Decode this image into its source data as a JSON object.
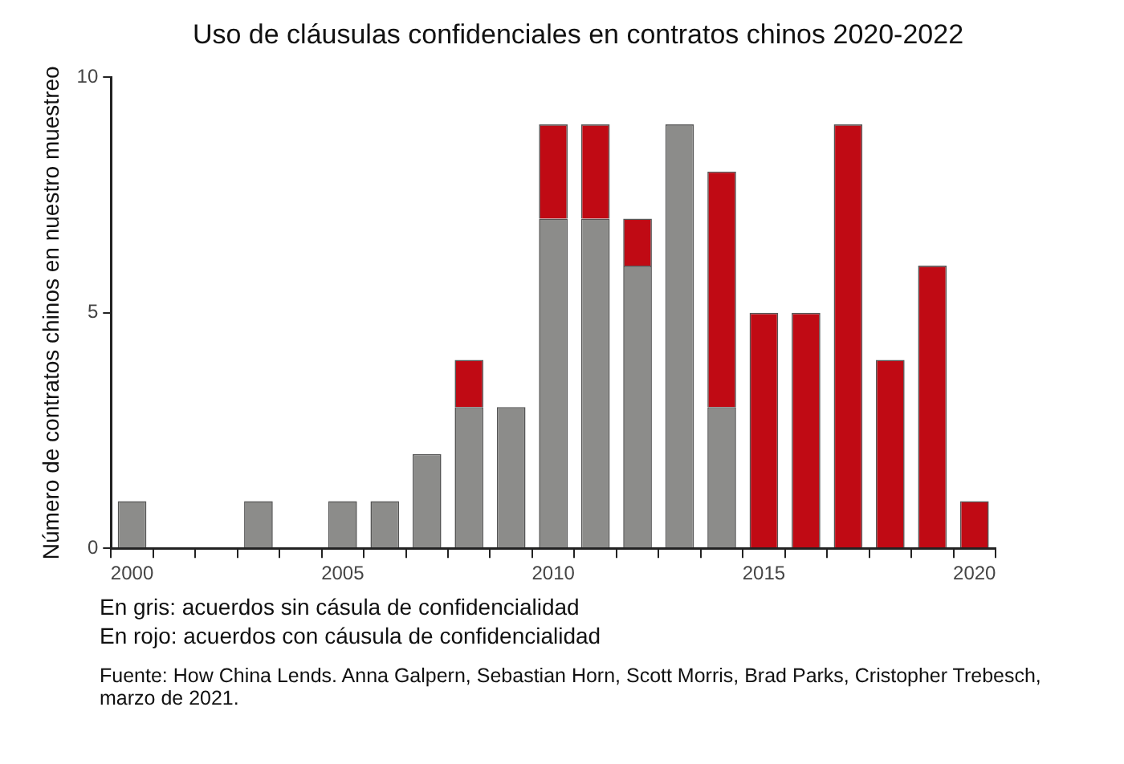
{
  "chart_data": {
    "type": "bar",
    "title": "Uso de cláusulas confidenciales en contratos chinos 2020-2022",
    "ylabel": "Número de contratos chinos en nuestro muestreo",
    "categories": [
      "2000",
      null,
      null,
      null,
      null,
      "2005",
      null,
      null,
      null,
      null,
      "2010",
      null,
      null,
      null,
      null,
      "2015",
      null,
      null,
      null,
      null,
      "2020"
    ],
    "stacked": true,
    "series": [
      {
        "color": "#8c8c8a",
        "values": [
          1,
          0,
          0,
          1,
          0,
          1,
          1,
          2,
          3,
          3,
          7,
          7,
          6,
          9,
          3,
          0,
          0,
          0,
          0,
          0,
          0
        ]
      },
      {
        "color": "#c00a14",
        "values": [
          0,
          0,
          0,
          0,
          0,
          0,
          0,
          0,
          1,
          0,
          2,
          2,
          1,
          0,
          5,
          5,
          5,
          9,
          4,
          6,
          1
        ]
      }
    ],
    "ylim": [
      0,
      10
    ],
    "yticks": [
      0,
      5,
      10
    ],
    "grid": false,
    "legend": false,
    "annotations": [
      "En gris: acuerdos sin cásula de confidencialidad",
      "En rojo: acuerdos con cáusula de confidencialidad",
      "Fuente: How China Lends. Anna Galpern, Sebastian Horn, Scott Morris, Brad Parks, Cristopher Trebesch, marzo de 2021."
    ]
  }
}
